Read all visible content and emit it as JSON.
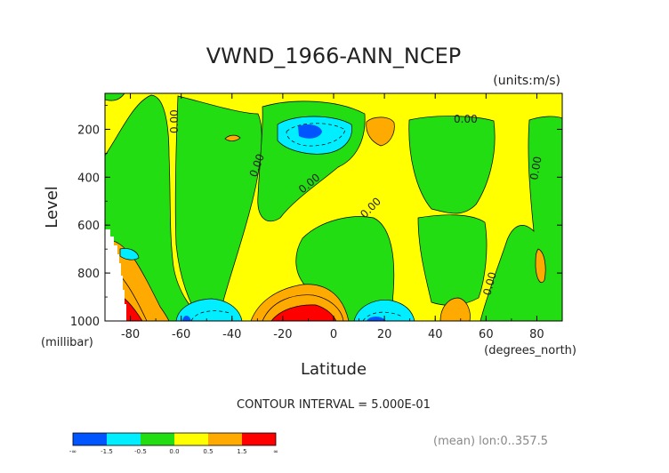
{
  "chart_data": {
    "type": "heatmap",
    "title": "VWND_1966-ANN_NCEP",
    "units_label": "(units:m/s)",
    "xlabel": "Latitude",
    "x_units_label": "(degrees_north)",
    "ylabel": "Level",
    "y_units_label": "(millibar)",
    "xlim": [
      -90,
      90
    ],
    "ylim": [
      1000,
      50
    ],
    "y_inverted": true,
    "x_ticks": [
      "-80",
      "-60",
      "-40",
      "-20",
      "0",
      "20",
      "40",
      "60",
      "80"
    ],
    "x_tick_values": [
      -80,
      -60,
      -40,
      -20,
      0,
      20,
      40,
      60,
      80
    ],
    "y_ticks": [
      "200",
      "400",
      "600",
      "800",
      "1000"
    ],
    "y_tick_values": [
      200,
      400,
      600,
      800,
      1000
    ],
    "contour_interval_text": "CONTOUR INTERVAL = 5.000E-01",
    "footer_text": "(mean) lon:0..357.5",
    "contour_labels": [
      "0.00",
      "0.00",
      "0.00",
      "0.00",
      "0.00",
      "0.00",
      "0.00"
    ],
    "legend": {
      "colors": [
        "#0055ff",
        "#00eeff",
        "#22dd11",
        "#ffff00",
        "#ffaa00",
        "#ff0000"
      ],
      "labels": [
        "-∞",
        "-1.5",
        "-0.5",
        "0.0",
        "0.5",
        "1.5",
        "∞"
      ]
    },
    "features": [
      {
        "kind": "positive",
        "value": 1.8,
        "lat": -10,
        "level": 960
      },
      {
        "kind": "positive",
        "value": 1.8,
        "lat": -85,
        "level": 960
      },
      {
        "kind": "positive",
        "value": 0.7,
        "lat": 20,
        "level": 160
      },
      {
        "kind": "positive",
        "value": 0.7,
        "lat": 52,
        "level": 950
      },
      {
        "kind": "negative",
        "value": -1.6,
        "lat": -10,
        "level": 180
      },
      {
        "kind": "negative",
        "value": -1.6,
        "lat": 20,
        "level": 980
      },
      {
        "kind": "negative",
        "value": -1.0,
        "lat": -55,
        "level": 960
      },
      {
        "kind": "negative",
        "value": -0.8,
        "lat": -82,
        "level": 680
      }
    ]
  }
}
